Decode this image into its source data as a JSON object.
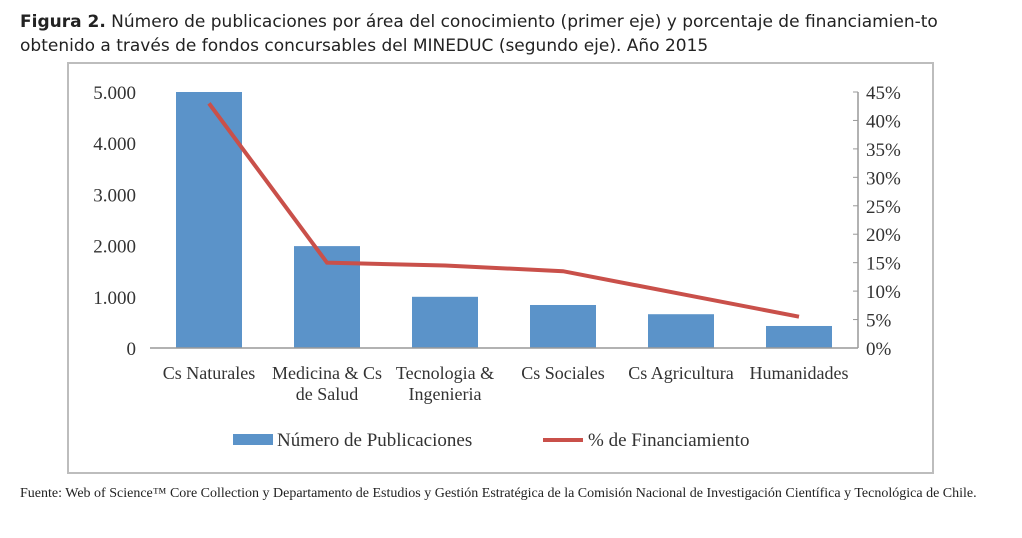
{
  "caption": {
    "label": "Figura 2.",
    "text": " Número de publicaciones por área del conocimiento (primer eje) y porcentaje de financiamien-to obtenido a través de fondos concursables del MINEDUC (segundo eje). Año 2015"
  },
  "source": "Fuente: Web of Science™ Core Collection y Departamento de Estudios y Gestión Estratégica de la Comisión Nacional de Investigación Científica y Tecnológica de Chile.",
  "chart_data": {
    "type": "bar+line",
    "categories": [
      [
        "Cs Naturales"
      ],
      [
        "Medicina & Cs",
        "de Salud"
      ],
      [
        "Tecnologia &",
        "Ingenieria"
      ],
      [
        "Cs Sociales"
      ],
      [
        "Cs Agricultura"
      ],
      [
        "Humanidades"
      ]
    ],
    "series": [
      {
        "name": "Número de Publicaciones",
        "type": "bar",
        "axis": "left",
        "color": "#5b93c9",
        "values": [
          5000,
          1990,
          1000,
          840,
          660,
          430
        ]
      },
      {
        "name": "% de Financiamiento",
        "type": "line",
        "axis": "right",
        "color": "#c9504a",
        "values": [
          43,
          15,
          14.5,
          13.5,
          9.5,
          5.5
        ]
      }
    ],
    "left_axis": {
      "ylim": [
        0,
        5000
      ],
      "ticks": [
        0,
        1000,
        2000,
        3000,
        4000,
        5000
      ],
      "tick_labels": [
        "0",
        "1.000",
        "2.000",
        "3.000",
        "4.000",
        "5.000"
      ]
    },
    "right_axis": {
      "ylim": [
        0,
        45
      ],
      "ticks": [
        0,
        5,
        10,
        15,
        20,
        25,
        30,
        35,
        40,
        45
      ],
      "tick_labels": [
        "0%",
        "5%",
        "10%",
        "15%",
        "20%",
        "25%",
        "30%",
        "35%",
        "40%",
        "45%"
      ]
    },
    "legend": "bottom",
    "grid": false
  }
}
